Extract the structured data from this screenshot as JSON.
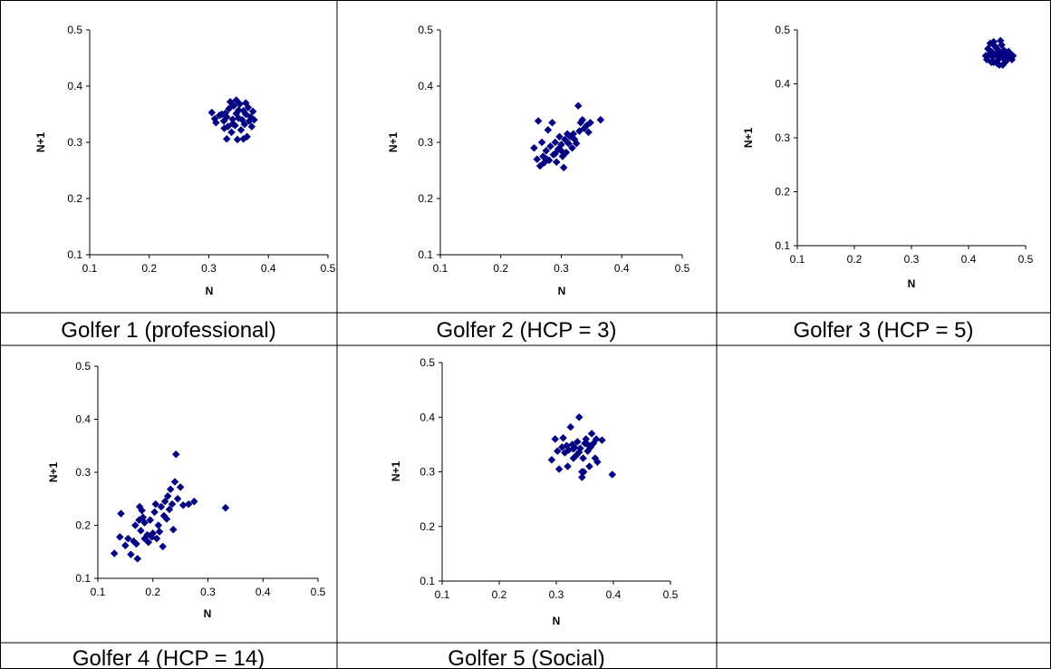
{
  "charts": [
    {
      "type": "scatter",
      "caption": "Golfer 1 (professional)",
      "xlabel": "N",
      "ylabel": "N+1",
      "xlim": [
        0.1,
        0.5
      ],
      "ylim": [
        0.1,
        0.5
      ],
      "xticks": [
        "0.1",
        "0.2",
        "0.3",
        "0.4",
        "0.5"
      ],
      "yticks": [
        "0.1",
        "0.2",
        "0.3",
        "0.4",
        "0.5"
      ],
      "marker_color": "#000080",
      "points": [
        [
          0.305,
          0.353
        ],
        [
          0.31,
          0.342
        ],
        [
          0.312,
          0.335
        ],
        [
          0.318,
          0.348
        ],
        [
          0.322,
          0.35
        ],
        [
          0.325,
          0.338
        ],
        [
          0.328,
          0.352
        ],
        [
          0.33,
          0.345
        ],
        [
          0.332,
          0.328
        ],
        [
          0.334,
          0.36
        ],
        [
          0.336,
          0.372
        ],
        [
          0.338,
          0.318
        ],
        [
          0.34,
          0.341
        ],
        [
          0.342,
          0.365
        ],
        [
          0.344,
          0.33
        ],
        [
          0.346,
          0.351
        ],
        [
          0.348,
          0.305
        ],
        [
          0.35,
          0.343
        ],
        [
          0.352,
          0.368
        ],
        [
          0.354,
          0.322
        ],
        [
          0.356,
          0.34
        ],
        [
          0.358,
          0.356
        ],
        [
          0.36,
          0.332
        ],
        [
          0.362,
          0.35
        ],
        [
          0.364,
          0.31
        ],
        [
          0.366,
          0.362
        ],
        [
          0.368,
          0.338
        ],
        [
          0.37,
          0.345
        ],
        [
          0.372,
          0.328
        ],
        [
          0.374,
          0.355
        ],
        [
          0.376,
          0.34
        ],
        [
          0.33,
          0.306
        ],
        [
          0.346,
          0.375
        ],
        [
          0.358,
          0.306
        ],
        [
          0.34,
          0.333
        ],
        [
          0.35,
          0.357
        ],
        [
          0.326,
          0.325
        ],
        [
          0.362,
          0.37
        ]
      ]
    },
    {
      "type": "scatter",
      "caption": "Golfer 2 (HCP = 3)",
      "xlabel": "N",
      "ylabel": "N+1",
      "xlim": [
        0.1,
        0.5
      ],
      "ylim": [
        0.1,
        0.5
      ],
      "xticks": [
        "0.1",
        "0.2",
        "0.3",
        "0.4",
        "0.5"
      ],
      "yticks": [
        "0.1",
        "0.2",
        "0.3",
        "0.4",
        "0.5"
      ],
      "marker_color": "#000080",
      "points": [
        [
          0.255,
          0.29
        ],
        [
          0.26,
          0.27
        ],
        [
          0.262,
          0.338
        ],
        [
          0.265,
          0.258
        ],
        [
          0.268,
          0.3
        ],
        [
          0.27,
          0.275
        ],
        [
          0.272,
          0.264
        ],
        [
          0.275,
          0.285
        ],
        [
          0.278,
          0.322
        ],
        [
          0.28,
          0.268
        ],
        [
          0.282,
          0.293
        ],
        [
          0.285,
          0.335
        ],
        [
          0.287,
          0.278
        ],
        [
          0.29,
          0.3
        ],
        [
          0.292,
          0.265
        ],
        [
          0.295,
          0.288
        ],
        [
          0.297,
          0.31
        ],
        [
          0.3,
          0.296
        ],
        [
          0.302,
          0.275
        ],
        [
          0.304,
          0.255
        ],
        [
          0.306,
          0.305
        ],
        [
          0.308,
          0.282
        ],
        [
          0.31,
          0.315
        ],
        [
          0.312,
          0.298
        ],
        [
          0.315,
          0.31
        ],
        [
          0.318,
          0.29
        ],
        [
          0.32,
          0.315
        ],
        [
          0.322,
          0.305
        ],
        [
          0.325,
          0.298
        ],
        [
          0.328,
          0.365
        ],
        [
          0.33,
          0.32
        ],
        [
          0.332,
          0.335
        ],
        [
          0.335,
          0.34
        ],
        [
          0.338,
          0.325
        ],
        [
          0.342,
          0.33
        ],
        [
          0.345,
          0.318
        ],
        [
          0.348,
          0.335
        ],
        [
          0.365,
          0.34
        ],
        [
          0.29,
          0.28
        ],
        [
          0.3,
          0.285
        ],
        [
          0.276,
          0.27
        ]
      ]
    },
    {
      "type": "scatter",
      "caption": "Golfer 3 (HCP = 5)",
      "xlabel": "N",
      "ylabel": "N+1",
      "xlim": [
        0.1,
        0.5
      ],
      "ylim": [
        0.1,
        0.5
      ],
      "xticks": [
        "0.1",
        "0.2",
        "0.3",
        "0.4",
        "0.5"
      ],
      "yticks": [
        "0.1",
        "0.2",
        "0.3",
        "0.4",
        "0.5"
      ],
      "marker_color": "#000080",
      "points": [
        [
          0.43,
          0.452
        ],
        [
          0.432,
          0.445
        ],
        [
          0.434,
          0.465
        ],
        [
          0.436,
          0.455
        ],
        [
          0.438,
          0.475
        ],
        [
          0.44,
          0.46
        ],
        [
          0.442,
          0.45
        ],
        [
          0.444,
          0.44
        ],
        [
          0.446,
          0.47
        ],
        [
          0.448,
          0.455
        ],
        [
          0.45,
          0.465
        ],
        [
          0.452,
          0.445
        ],
        [
          0.454,
          0.435
        ],
        [
          0.456,
          0.458
        ],
        [
          0.458,
          0.472
        ],
        [
          0.46,
          0.448
        ],
        [
          0.462,
          0.462
        ],
        [
          0.464,
          0.44
        ],
        [
          0.466,
          0.455
        ],
        [
          0.468,
          0.445
        ],
        [
          0.47,
          0.46
        ],
        [
          0.472,
          0.45
        ],
        [
          0.474,
          0.455
        ],
        [
          0.476,
          0.445
        ],
        [
          0.478,
          0.452
        ],
        [
          0.444,
          0.478
        ],
        [
          0.45,
          0.438
        ],
        [
          0.456,
          0.48
        ],
        [
          0.46,
          0.435
        ],
        [
          0.44,
          0.44
        ],
        [
          0.455,
          0.45
        ],
        [
          0.465,
          0.458
        ]
      ]
    },
    {
      "type": "scatter",
      "caption": "Golfer 4 (HCP = 14)",
      "xlabel": "N",
      "ylabel": "N+1",
      "xlim": [
        0.1,
        0.5
      ],
      "ylim": [
        0.1,
        0.5
      ],
      "xticks": [
        "0.1",
        "0.2",
        "0.3",
        "0.4",
        "0.5"
      ],
      "yticks": [
        "0.1",
        "0.2",
        "0.3",
        "0.4",
        "0.5"
      ],
      "marker_color": "#000080",
      "points": [
        [
          0.13,
          0.147
        ],
        [
          0.14,
          0.178
        ],
        [
          0.142,
          0.222
        ],
        [
          0.15,
          0.162
        ],
        [
          0.155,
          0.175
        ],
        [
          0.16,
          0.145
        ],
        [
          0.165,
          0.17
        ],
        [
          0.168,
          0.2
        ],
        [
          0.17,
          0.165
        ],
        [
          0.172,
          0.137
        ],
        [
          0.175,
          0.21
        ],
        [
          0.176,
          0.235
        ],
        [
          0.178,
          0.19
        ],
        [
          0.18,
          0.228
        ],
        [
          0.182,
          0.215
        ],
        [
          0.185,
          0.175
        ],
        [
          0.19,
          0.182
        ],
        [
          0.192,
          0.168
        ],
        [
          0.195,
          0.21
        ],
        [
          0.198,
          0.178
        ],
        [
          0.2,
          0.185
        ],
        [
          0.203,
          0.225
        ],
        [
          0.205,
          0.24
        ],
        [
          0.207,
          0.175
        ],
        [
          0.21,
          0.2
        ],
        [
          0.212,
          0.188
        ],
        [
          0.215,
          0.235
        ],
        [
          0.218,
          0.16
        ],
        [
          0.22,
          0.218
        ],
        [
          0.222,
          0.245
        ],
        [
          0.225,
          0.212
        ],
        [
          0.227,
          0.255
        ],
        [
          0.23,
          0.23
        ],
        [
          0.232,
          0.268
        ],
        [
          0.235,
          0.24
        ],
        [
          0.237,
          0.192
        ],
        [
          0.24,
          0.282
        ],
        [
          0.242,
          0.334
        ],
        [
          0.245,
          0.25
        ],
        [
          0.25,
          0.272
        ],
        [
          0.255,
          0.238
        ],
        [
          0.265,
          0.24
        ],
        [
          0.275,
          0.245
        ],
        [
          0.332,
          0.233
        ],
        [
          0.185,
          0.205
        ]
      ]
    },
    {
      "type": "scatter",
      "caption": "Golfer 5 (Social)",
      "xlabel": "N",
      "ylabel": "N+1",
      "xlim": [
        0.1,
        0.5
      ],
      "ylim": [
        0.1,
        0.5
      ],
      "xticks": [
        "0.1",
        "0.2",
        "0.3",
        "0.4",
        "0.5"
      ],
      "yticks": [
        "0.1",
        "0.2",
        "0.3",
        "0.4",
        "0.5"
      ],
      "marker_color": "#000080",
      "points": [
        [
          0.292,
          0.322
        ],
        [
          0.298,
          0.36
        ],
        [
          0.302,
          0.338
        ],
        [
          0.305,
          0.305
        ],
        [
          0.31,
          0.345
        ],
        [
          0.312,
          0.362
        ],
        [
          0.315,
          0.335
        ],
        [
          0.318,
          0.348
        ],
        [
          0.32,
          0.31
        ],
        [
          0.322,
          0.34
        ],
        [
          0.325,
          0.382
        ],
        [
          0.328,
          0.35
        ],
        [
          0.33,
          0.325
        ],
        [
          0.332,
          0.345
        ],
        [
          0.335,
          0.33
        ],
        [
          0.337,
          0.355
        ],
        [
          0.34,
          0.4
        ],
        [
          0.342,
          0.343
        ],
        [
          0.345,
          0.3
        ],
        [
          0.345,
          0.29
        ],
        [
          0.347,
          0.325
        ],
        [
          0.35,
          0.352
        ],
        [
          0.352,
          0.36
        ],
        [
          0.355,
          0.338
        ],
        [
          0.358,
          0.31
        ],
        [
          0.36,
          0.345
        ],
        [
          0.362,
          0.37
        ],
        [
          0.365,
          0.352
        ],
        [
          0.368,
          0.325
        ],
        [
          0.37,
          0.36
        ],
        [
          0.372,
          0.318
        ],
        [
          0.38,
          0.358
        ],
        [
          0.398,
          0.295
        ],
        [
          0.34,
          0.336
        ],
        [
          0.33,
          0.342
        ],
        [
          0.355,
          0.35
        ],
        [
          0.348,
          0.3
        ]
      ]
    }
  ]
}
